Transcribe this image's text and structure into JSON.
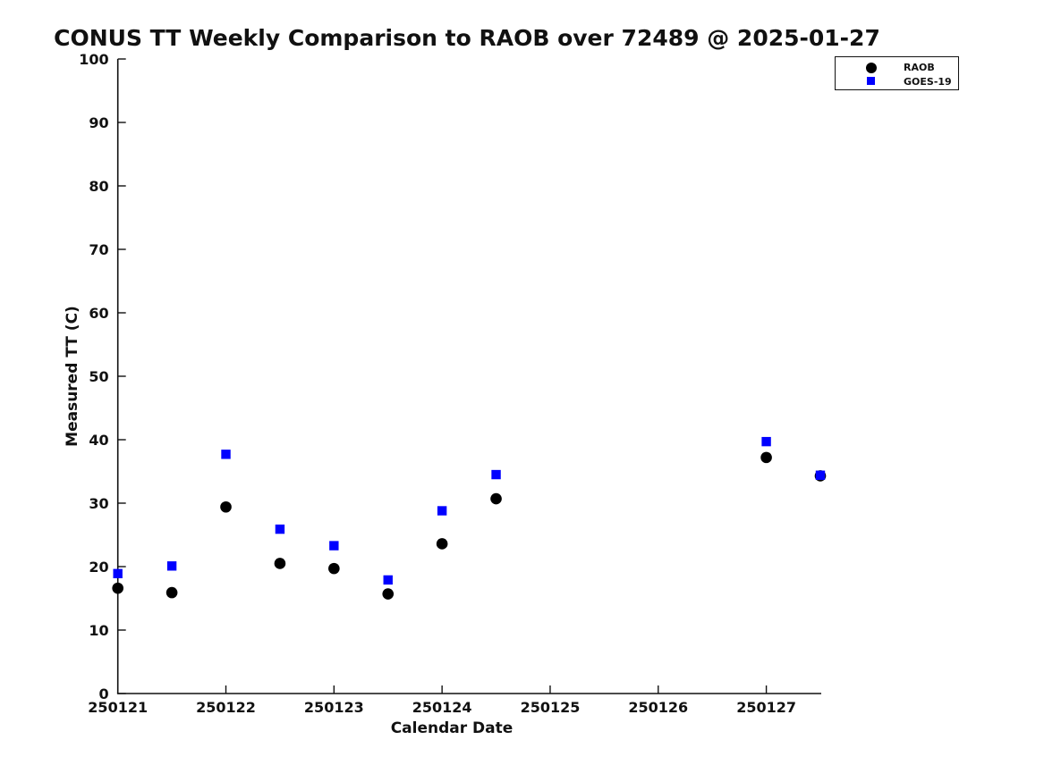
{
  "chart_data": {
    "type": "scatter",
    "title": "CONUS TT Weekly Comparison to RAOB over 72489 @ 2025-01-27",
    "xlabel": "Calendar Date",
    "ylabel": "Measured TT (C)",
    "xlim": [
      250121,
      250127.5
    ],
    "ylim": [
      0,
      100
    ],
    "x_ticks": [
      250121,
      250122,
      250123,
      250124,
      250125,
      250126,
      250127
    ],
    "y_ticks": [
      0,
      10,
      20,
      30,
      40,
      50,
      60,
      70,
      80,
      90,
      100
    ],
    "grid": false,
    "legend_position": "top-right",
    "axis_color": "#111111",
    "series": [
      {
        "name": "RAOB",
        "marker": "circle",
        "color": "#000000",
        "points": [
          [
            250121.0,
            16.6
          ],
          [
            250121.5,
            15.9
          ],
          [
            250122.0,
            29.4
          ],
          [
            250122.5,
            20.5
          ],
          [
            250123.0,
            19.7
          ],
          [
            250123.5,
            15.7
          ],
          [
            250124.0,
            23.6
          ],
          [
            250124.5,
            30.7
          ],
          [
            250127.0,
            37.2
          ],
          [
            250127.5,
            34.3
          ]
        ]
      },
      {
        "name": "GOES-19",
        "marker": "square",
        "color": "#0000ff",
        "points": [
          [
            250121.0,
            18.9
          ],
          [
            250121.5,
            20.1
          ],
          [
            250122.0,
            37.7
          ],
          [
            250122.5,
            25.9
          ],
          [
            250123.0,
            23.3
          ],
          [
            250123.5,
            17.9
          ],
          [
            250124.0,
            28.8
          ],
          [
            250124.5,
            34.5
          ],
          [
            250127.0,
            39.7
          ],
          [
            250127.5,
            34.4
          ]
        ]
      }
    ]
  }
}
